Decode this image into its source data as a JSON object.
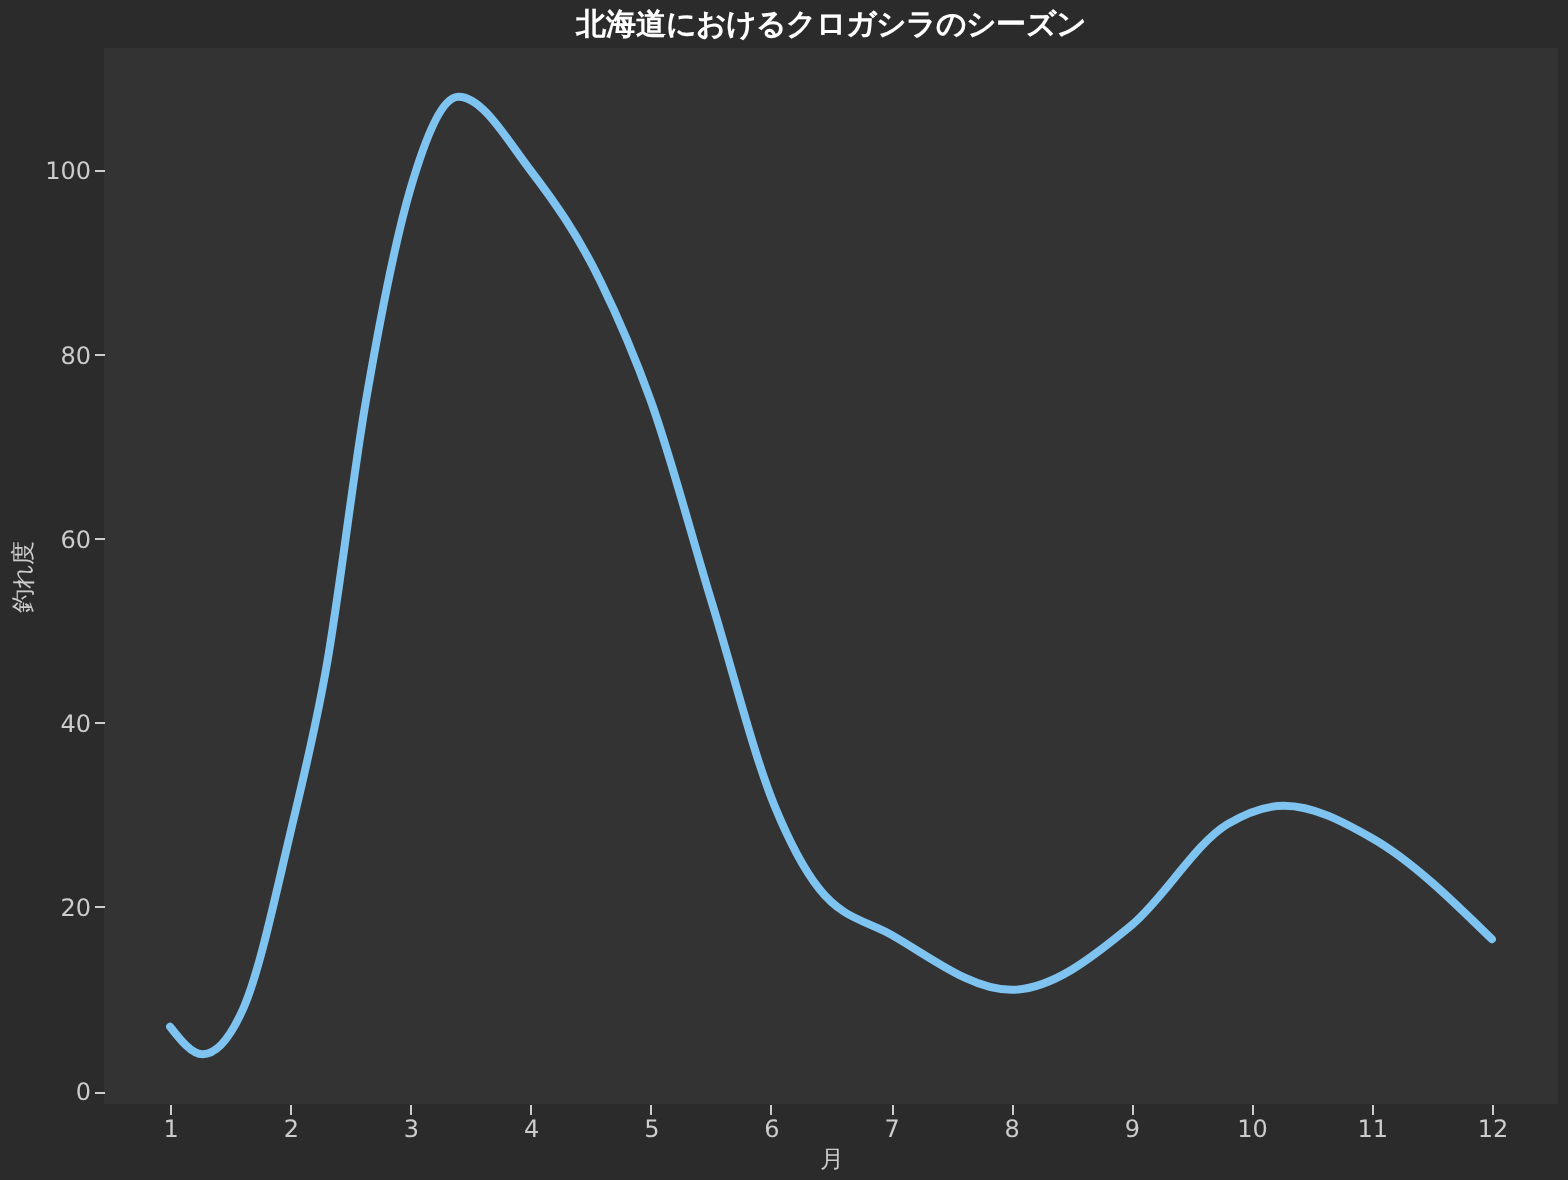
{
  "chart_data": {
    "type": "line",
    "title": "北海道におけるクロガシラのシーズン",
    "xlabel": "月",
    "ylabel": "釣れ度",
    "x": [
      1,
      1.27,
      1.61,
      2,
      2.3,
      2.63,
      3,
      3.4,
      4,
      4.58,
      5,
      5.51,
      6.03,
      6.4,
      7,
      8,
      9,
      9.8,
      10.27,
      11,
      12
    ],
    "series": [
      {
        "color": "#7fc4f0",
        "values": [
          7,
          4,
          9,
          28,
          46,
          75,
          98,
          108,
          100,
          88,
          75,
          53,
          31,
          22,
          17,
          11,
          18,
          29,
          31,
          27.5,
          16.5
        ]
      }
    ],
    "xlim": [
      0.45,
      12.55
    ],
    "xticks": [
      1,
      2,
      3,
      4,
      5,
      6,
      7,
      8,
      9,
      10,
      11,
      12
    ],
    "ylim": [
      -1.4,
      113.3
    ],
    "yticks": [
      0,
      20,
      40,
      60,
      80,
      100
    ],
    "grid": false,
    "legend": false,
    "marker": "none",
    "line_style": "solid"
  }
}
